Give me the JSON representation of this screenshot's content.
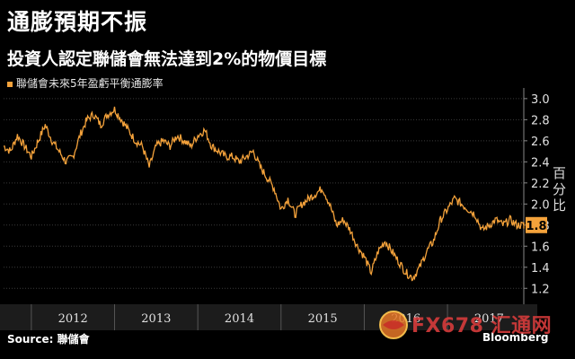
{
  "header": {
    "title": "通膨預期不振",
    "subtitle": "投資人認定聯儲會無法達到2%的物價目標"
  },
  "footer": {
    "source": "Source: 聯儲會",
    "brand": "Bloomberg"
  },
  "watermark": {
    "text": "FX678 汇通网"
  },
  "colors": {
    "background": "#000000",
    "series": "#f4a23b",
    "label_box": "#f4a23b",
    "grid": "#3a3a3a"
  },
  "chart_data": {
    "type": "line",
    "title": "通膨預期不振",
    "subtitle": "投資人認定聯儲會無法達到2%的物價目標",
    "ylabel": "百分比",
    "xlabel": "",
    "x_ticks": [
      "2012",
      "2013",
      "2014",
      "2015",
      "2016",
      "2017"
    ],
    "xlim": [
      "2011-09",
      "2017-12"
    ],
    "ylim": [
      1.1,
      3.05
    ],
    "y_ticks": [
      1.2,
      1.4,
      1.6,
      1.8,
      2.0,
      2.2,
      2.4,
      2.6,
      2.8,
      3.0
    ],
    "y_axis_side": "right",
    "grid": true,
    "legend": "top-left",
    "last_value_label": "1.8",
    "series": [
      {
        "name": "聯儲會未來5年盈虧平衡通膨率",
        "points": [
          [
            "2011-09",
            2.55
          ],
          [
            "2011-10",
            2.5
          ],
          [
            "2011-11",
            2.65
          ],
          [
            "2011-12",
            2.55
          ],
          [
            "2012-01",
            2.45
          ],
          [
            "2012-02",
            2.6
          ],
          [
            "2012-03",
            2.75
          ],
          [
            "2012-04",
            2.6
          ],
          [
            "2012-05",
            2.5
          ],
          [
            "2012-06",
            2.4
          ],
          [
            "2012-07",
            2.45
          ],
          [
            "2012-08",
            2.65
          ],
          [
            "2012-09",
            2.8
          ],
          [
            "2012-10",
            2.85
          ],
          [
            "2012-11",
            2.75
          ],
          [
            "2012-12",
            2.85
          ],
          [
            "2013-01",
            2.9
          ],
          [
            "2013-02",
            2.8
          ],
          [
            "2013-03",
            2.7
          ],
          [
            "2013-04",
            2.6
          ],
          [
            "2013-05",
            2.55
          ],
          [
            "2013-06",
            2.35
          ],
          [
            "2013-07",
            2.55
          ],
          [
            "2013-08",
            2.6
          ],
          [
            "2013-09",
            2.55
          ],
          [
            "2013-10",
            2.65
          ],
          [
            "2013-11",
            2.6
          ],
          [
            "2013-12",
            2.55
          ],
          [
            "2014-01",
            2.65
          ],
          [
            "2014-02",
            2.7
          ],
          [
            "2014-03",
            2.55
          ],
          [
            "2014-04",
            2.5
          ],
          [
            "2014-05",
            2.45
          ],
          [
            "2014-06",
            2.45
          ],
          [
            "2014-07",
            2.4
          ],
          [
            "2014-08",
            2.45
          ],
          [
            "2014-09",
            2.5
          ],
          [
            "2014-10",
            2.35
          ],
          [
            "2014-11",
            2.25
          ],
          [
            "2014-12",
            2.15
          ],
          [
            "2015-01",
            1.95
          ],
          [
            "2015-02",
            2.05
          ],
          [
            "2015-03",
            1.9
          ],
          [
            "2015-04",
            2.0
          ],
          [
            "2015-05",
            2.05
          ],
          [
            "2015-06",
            2.1
          ],
          [
            "2015-07",
            2.15
          ],
          [
            "2015-08",
            2.0
          ],
          [
            "2015-09",
            1.8
          ],
          [
            "2015-10",
            1.85
          ],
          [
            "2015-11",
            1.75
          ],
          [
            "2015-12",
            1.6
          ],
          [
            "2016-01",
            1.5
          ],
          [
            "2016-02",
            1.35
          ],
          [
            "2016-03",
            1.55
          ],
          [
            "2016-04",
            1.65
          ],
          [
            "2016-05",
            1.55
          ],
          [
            "2016-06",
            1.45
          ],
          [
            "2016-07",
            1.35
          ],
          [
            "2016-08",
            1.3
          ],
          [
            "2016-09",
            1.4
          ],
          [
            "2016-10",
            1.55
          ],
          [
            "2016-11",
            1.65
          ],
          [
            "2016-12",
            1.85
          ],
          [
            "2017-01",
            1.95
          ],
          [
            "2017-02",
            2.05
          ],
          [
            "2017-03",
            2.0
          ],
          [
            "2017-04",
            1.95
          ],
          [
            "2017-05",
            1.9
          ],
          [
            "2017-06",
            1.75
          ],
          [
            "2017-07",
            1.8
          ],
          [
            "2017-08",
            1.85
          ],
          [
            "2017-09",
            1.8
          ],
          [
            "2017-10",
            1.85
          ],
          [
            "2017-11",
            1.8
          ],
          [
            "2017-12",
            1.8
          ]
        ]
      }
    ]
  }
}
